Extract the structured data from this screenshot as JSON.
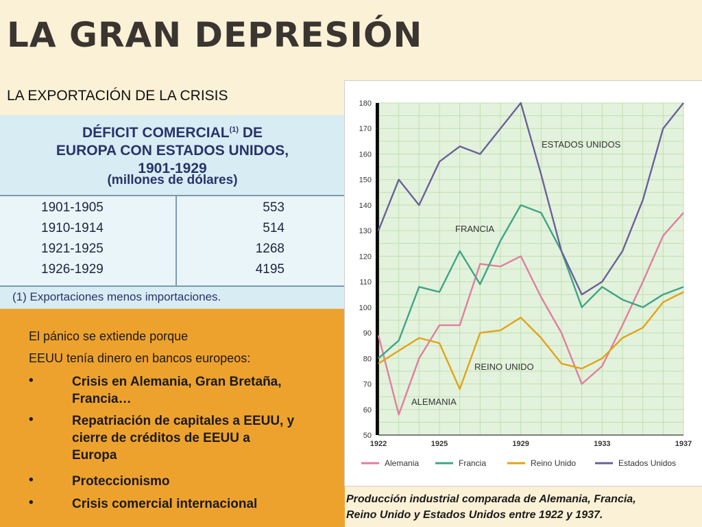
{
  "slide": {
    "title": "LA GRAN DEPRESIÓN",
    "subtitle": "LA EXPORTACIÓN DE LA CRISIS"
  },
  "table": {
    "title_line1": "DÉFICIT COMERCIAL",
    "title_sup": "(1)",
    "title_line1_end": " DE",
    "title_line2": "EUROPA CON ESTADOS UNIDOS,",
    "title_line3": "1901-1929",
    "unit": "(millones de dólares)",
    "rows": [
      {
        "period": "1901-1905",
        "value": "553"
      },
      {
        "period": "1910-1914",
        "value": "514"
      },
      {
        "period": "1921-1925",
        "value": "1268"
      },
      {
        "period": "1926-1929",
        "value": "4195"
      }
    ],
    "note": "(1) Exportaciones menos importaciones."
  },
  "text_panel": {
    "line1": "El pánico se extiende porque",
    "line2": "EEUU tenía dinero en bancos europeos:",
    "bullet": "•",
    "bullets": [
      {
        "lines": [
          "Crisis en Alemania, Gran Bretaña,",
          "Francia…"
        ]
      },
      {
        "lines": [
          "Repatriación de capitales a EEUU, y",
          "cierre de créditos de EEUU a",
          "Europa"
        ]
      },
      {
        "lines": [
          "Proteccionismo"
        ]
      },
      {
        "lines": [
          "Crisis comercial internacional"
        ]
      }
    ]
  },
  "chart_data": {
    "type": "line",
    "title": "",
    "xlabel": "",
    "ylabel": "",
    "xlim": [
      1922,
      1937
    ],
    "ylim": [
      50,
      180
    ],
    "yticks": [
      50,
      60,
      70,
      80,
      90,
      100,
      110,
      120,
      130,
      140,
      150,
      160,
      170,
      180
    ],
    "xticks": [
      1922,
      1925,
      1929,
      1933,
      1937
    ],
    "grid": true,
    "legend_position": "bottom",
    "x": [
      1922,
      1923,
      1924,
      1925,
      1926,
      1927,
      1928,
      1929,
      1930,
      1931,
      1932,
      1933,
      1934,
      1935,
      1936,
      1937
    ],
    "series": [
      {
        "name": "Alemania",
        "label": "ALEMANIA",
        "color": "#e07e9e",
        "values": [
          89,
          58,
          80,
          93,
          93,
          117,
          116,
          120,
          104,
          90,
          70,
          77,
          93,
          110,
          128,
          137
        ]
      },
      {
        "name": "Francia",
        "label": "FRANCIA",
        "color": "#3ea487",
        "values": [
          80,
          87,
          108,
          106,
          122,
          109,
          126,
          140,
          137,
          122,
          100,
          108,
          103,
          100,
          105,
          108
        ]
      },
      {
        "name": "Reino Unido",
        "label": "REINO UNIDO",
        "color": "#e0a416",
        "values": [
          78,
          83,
          88,
          86,
          68,
          90,
          91,
          96,
          88,
          78,
          76,
          80,
          88,
          92,
          102,
          106
        ]
      },
      {
        "name": "Estados Unidos",
        "label": "ESTADOS UNIDOS",
        "color": "#6b5f9a",
        "values": [
          130,
          150,
          140,
          157,
          163,
          160,
          170,
          180,
          152,
          122,
          105,
          110,
          122,
          142,
          170,
          180
        ]
      }
    ],
    "caption_line1": "Producción industrial comparada de Alemania, Francia,",
    "caption_line2": "Reino Unido y Estados Unidos entre 1922 y 1937.",
    "background_color": "#e3f2dc",
    "grid_color": "#bfe0b2"
  }
}
